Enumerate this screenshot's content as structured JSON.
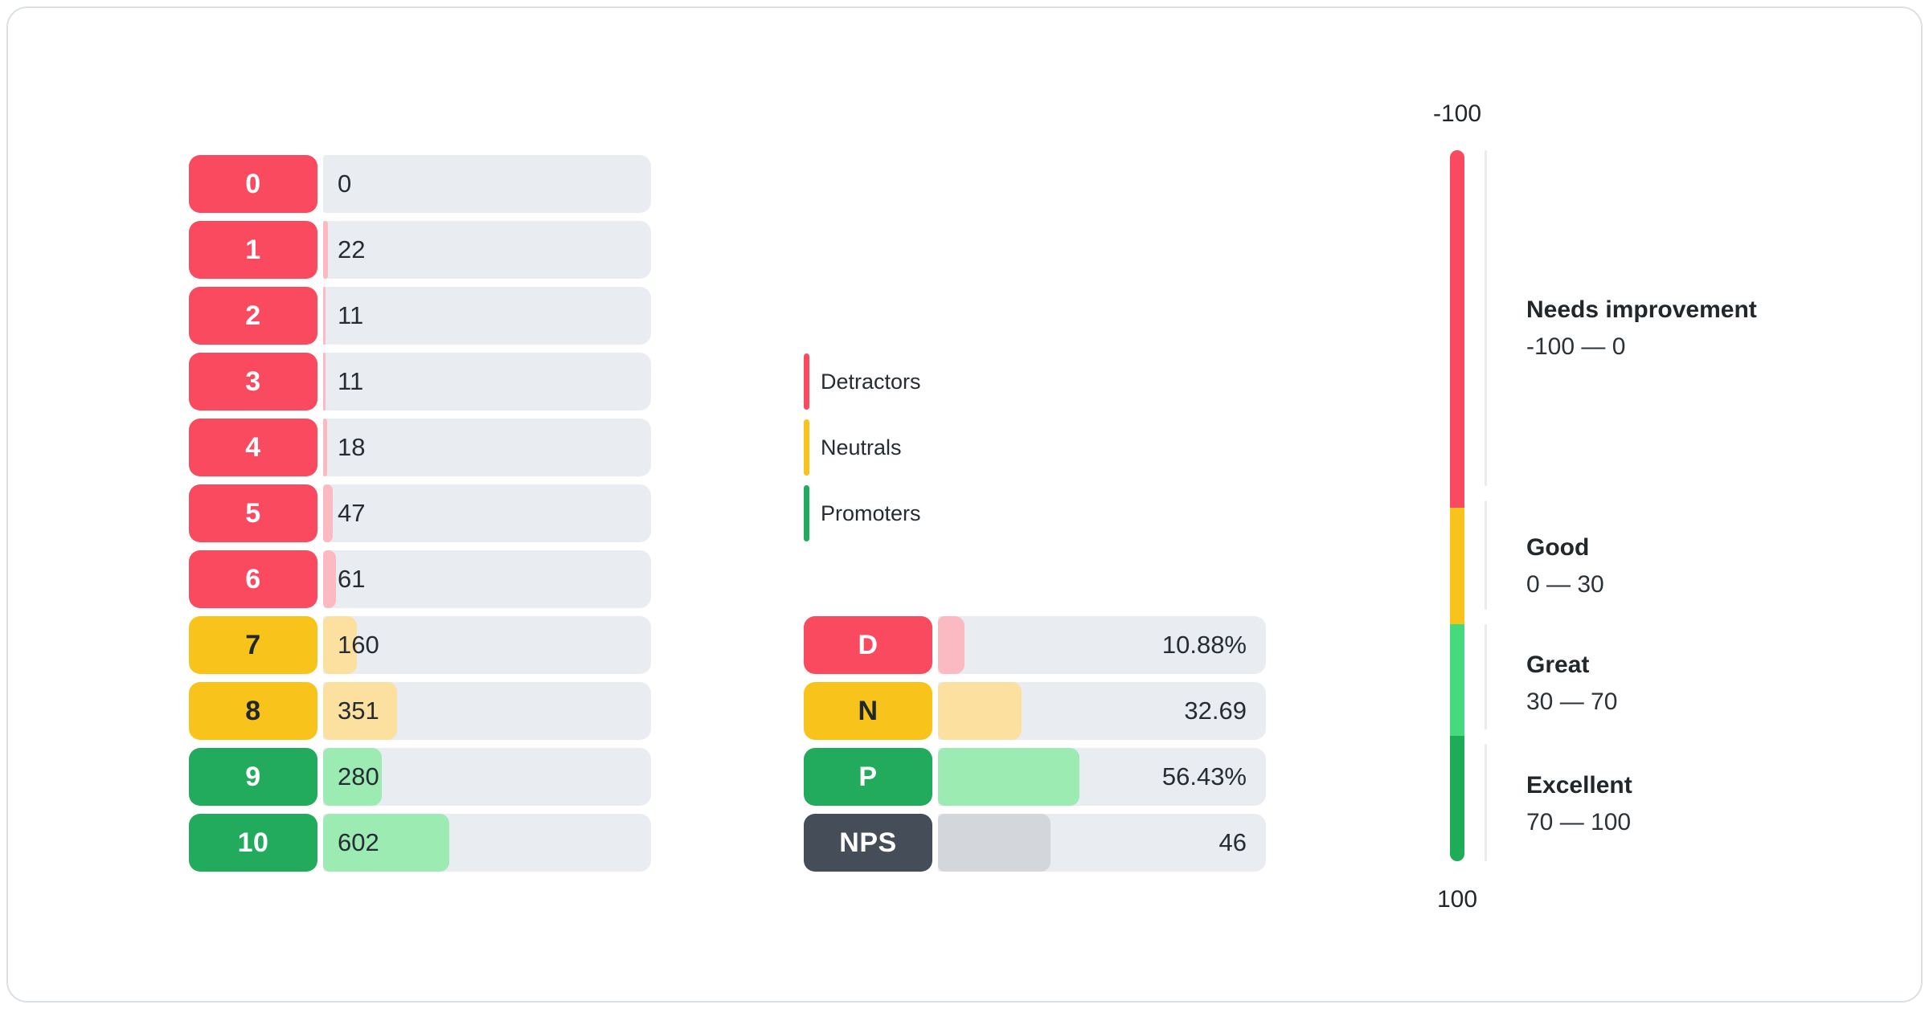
{
  "colors": {
    "detractor": "#fa4a5f",
    "detractor_light": "#fbb9c1",
    "neutral": "#f8c41c",
    "neutral_light": "#fce0a0",
    "promoter": "#22ab5d",
    "promoter_light": "#9cebb3",
    "nps": "#454e58",
    "nps_light": "#d3d6da",
    "track": "#e9ecf0",
    "gauge_great": "#45da7d",
    "gauge_excellent": "#1fac56",
    "axis_line": "#e9ebee"
  },
  "legend": {
    "items": [
      {
        "label": "Detractors",
        "group": "detractor"
      },
      {
        "label": "Neutrals",
        "group": "neutral"
      },
      {
        "label": "Promoters",
        "group": "promoter"
      }
    ]
  },
  "chart_data": [
    {
      "id": "score-distribution",
      "type": "bar",
      "orientation": "horizontal",
      "note": "count of responses per NPS score; bar fill length = count / total responses",
      "rows": [
        {
          "score": "0",
          "count": "0",
          "group": "detractor",
          "fill_pct": 0
        },
        {
          "score": "1",
          "count": "22",
          "group": "detractor",
          "fill_pct": 1.4
        },
        {
          "score": "2",
          "count": "11",
          "group": "detractor",
          "fill_pct": 0.7
        },
        {
          "score": "3",
          "count": "11",
          "group": "detractor",
          "fill_pct": 0.7
        },
        {
          "score": "4",
          "count": "18",
          "group": "detractor",
          "fill_pct": 1.2
        },
        {
          "score": "5",
          "count": "47",
          "group": "detractor",
          "fill_pct": 3.0
        },
        {
          "score": "6",
          "count": "61",
          "group": "detractor",
          "fill_pct": 3.9
        },
        {
          "score": "7",
          "count": "160",
          "group": "neutral",
          "fill_pct": 10.2
        },
        {
          "score": "8",
          "count": "351",
          "group": "neutral",
          "fill_pct": 22.5
        },
        {
          "score": "9",
          "count": "280",
          "group": "promoter",
          "fill_pct": 17.9
        },
        {
          "score": "10",
          "count": "602",
          "group": "promoter",
          "fill_pct": 38.5
        }
      ]
    },
    {
      "id": "nps-summary",
      "type": "bar",
      "orientation": "horizontal",
      "rows": [
        {
          "label": "D",
          "value": "10.88%",
          "group": "detractor",
          "fill_pct": 8.1
        },
        {
          "label": "N",
          "value": "32.69",
          "group": "neutral",
          "fill_pct": 25.4
        },
        {
          "label": "P",
          "value": "56.43%",
          "group": "promoter",
          "fill_pct": 43.2
        },
        {
          "label": "NPS",
          "value": "46",
          "group": "nps",
          "fill_pct": 34.3
        }
      ]
    },
    {
      "id": "nps-gauge",
      "type": "gauge",
      "orientation": "vertical",
      "axis_top_label": "-100",
      "axis_bottom_label": "100",
      "zones": [
        {
          "title": "Needs improvement",
          "range": "-100 — 0",
          "color_key": "detractor",
          "height_frac": 445
        },
        {
          "title": "Good",
          "range": "0 — 30",
          "color_key": "neutral",
          "height_frac": 145
        },
        {
          "title": "Great",
          "range": "30 — 70",
          "color_key": "gauge_great",
          "height_frac": 139
        },
        {
          "title": "Excellent",
          "range": "70 — 100",
          "color_key": "gauge_excellent",
          "height_frac": 156
        }
      ]
    }
  ]
}
